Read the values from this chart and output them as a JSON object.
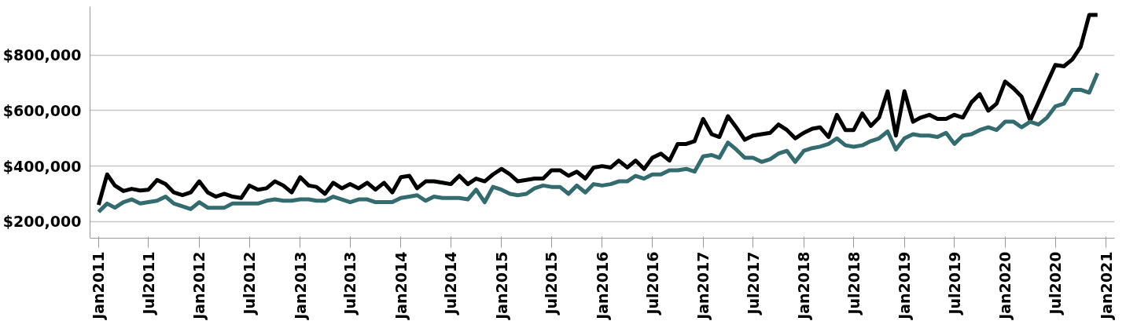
{
  "chart_data": {
    "type": "line",
    "x": [
      "2011-01",
      "2011-02",
      "2011-03",
      "2011-04",
      "2011-05",
      "2011-06",
      "2011-07",
      "2011-08",
      "2011-09",
      "2011-10",
      "2011-11",
      "2011-12",
      "2012-01",
      "2012-02",
      "2012-03",
      "2012-04",
      "2012-05",
      "2012-06",
      "2012-07",
      "2012-08",
      "2012-09",
      "2012-10",
      "2012-11",
      "2012-12",
      "2013-01",
      "2013-02",
      "2013-03",
      "2013-04",
      "2013-05",
      "2013-06",
      "2013-07",
      "2013-08",
      "2013-09",
      "2013-10",
      "2013-11",
      "2013-12",
      "2014-01",
      "2014-02",
      "2014-03",
      "2014-04",
      "2014-05",
      "2014-06",
      "2014-07",
      "2014-08",
      "2014-09",
      "2014-10",
      "2014-11",
      "2014-12",
      "2015-01",
      "2015-02",
      "2015-03",
      "2015-04",
      "2015-05",
      "2015-06",
      "2015-07",
      "2015-08",
      "2015-09",
      "2015-10",
      "2015-11",
      "2015-12",
      "2016-01",
      "2016-02",
      "2016-03",
      "2016-04",
      "2016-05",
      "2016-06",
      "2016-07",
      "2016-08",
      "2016-09",
      "2016-10",
      "2016-11",
      "2016-12",
      "2017-01",
      "2017-02",
      "2017-03",
      "2017-04",
      "2017-05",
      "2017-06",
      "2017-07",
      "2017-08",
      "2017-09",
      "2017-10",
      "2017-11",
      "2017-12",
      "2018-01",
      "2018-02",
      "2018-03",
      "2018-04",
      "2018-05",
      "2018-06",
      "2018-07",
      "2018-08",
      "2018-09",
      "2018-10",
      "2018-11",
      "2018-12",
      "2019-01",
      "2019-02",
      "2019-03",
      "2019-04",
      "2019-05",
      "2019-06",
      "2019-07",
      "2019-08",
      "2019-09",
      "2019-10",
      "2019-11",
      "2019-12",
      "2020-01",
      "2020-02",
      "2020-03",
      "2020-04",
      "2020-05",
      "2020-06",
      "2020-07",
      "2020-08",
      "2020-09",
      "2020-10",
      "2020-11",
      "2020-12"
    ],
    "series": [
      {
        "color": "#000000",
        "values": [
          260000,
          370000,
          330000,
          310000,
          318000,
          312000,
          315000,
          350000,
          335000,
          305000,
          295000,
          305000,
          345000,
          305000,
          290000,
          300000,
          290000,
          285000,
          330000,
          315000,
          320000,
          345000,
          330000,
          305000,
          360000,
          330000,
          325000,
          300000,
          340000,
          320000,
          335000,
          320000,
          340000,
          315000,
          340000,
          305000,
          360000,
          365000,
          320000,
          345000,
          345000,
          340000,
          335000,
          365000,
          335000,
          355000,
          345000,
          370000,
          390000,
          370000,
          345000,
          350000,
          355000,
          355000,
          385000,
          385000,
          365000,
          380000,
          355000,
          395000,
          400000,
          395000,
          420000,
          395000,
          420000,
          390000,
          430000,
          445000,
          420000,
          480000,
          480000,
          490000,
          570000,
          515000,
          505000,
          580000,
          540000,
          495000,
          510000,
          515000,
          520000,
          550000,
          530000,
          500000,
          520000,
          535000,
          540000,
          505000,
          585000,
          530000,
          530000,
          590000,
          545000,
          575000,
          670000,
          510000,
          670000,
          560000,
          575000,
          585000,
          570000,
          570000,
          585000,
          575000,
          630000,
          660000,
          600000,
          625000,
          705000,
          680000,
          650000,
          565000,
          630000,
          700000,
          765000,
          760000,
          785000,
          830000,
          945000,
          945000
        ]
      },
      {
        "color": "#336b6e",
        "values": [
          235000,
          265000,
          250000,
          270000,
          280000,
          265000,
          270000,
          275000,
          290000,
          265000,
          255000,
          245000,
          270000,
          250000,
          250000,
          250000,
          265000,
          265000,
          265000,
          265000,
          275000,
          280000,
          275000,
          275000,
          280000,
          280000,
          275000,
          275000,
          290000,
          280000,
          270000,
          280000,
          280000,
          270000,
          270000,
          270000,
          285000,
          290000,
          295000,
          275000,
          290000,
          285000,
          285000,
          285000,
          280000,
          315000,
          270000,
          325000,
          315000,
          300000,
          295000,
          300000,
          320000,
          330000,
          325000,
          325000,
          300000,
          330000,
          305000,
          335000,
          330000,
          335000,
          345000,
          345000,
          365000,
          355000,
          370000,
          370000,
          385000,
          385000,
          390000,
          380000,
          435000,
          440000,
          430000,
          485000,
          460000,
          430000,
          430000,
          415000,
          425000,
          445000,
          455000,
          415000,
          455000,
          465000,
          470000,
          480000,
          500000,
          475000,
          470000,
          475000,
          490000,
          500000,
          525000,
          460000,
          500000,
          515000,
          510000,
          510000,
          505000,
          520000,
          480000,
          510000,
          515000,
          530000,
          540000,
          530000,
          560000,
          560000,
          540000,
          560000,
          550000,
          575000,
          615000,
          625000,
          675000,
          675000,
          665000,
          735000
        ]
      }
    ],
    "xlim": [
      "2010-12",
      "2021-02"
    ],
    "xticks": [
      {
        "value": "2011-01",
        "label": "Jan2011"
      },
      {
        "value": "2011-07",
        "label": "Jul2011"
      },
      {
        "value": "2012-01",
        "label": "Jan2012"
      },
      {
        "value": "2012-07",
        "label": "Jul2012"
      },
      {
        "value": "2013-01",
        "label": "Jan2013"
      },
      {
        "value": "2013-07",
        "label": "Jul2013"
      },
      {
        "value": "2014-01",
        "label": "Jan2014"
      },
      {
        "value": "2014-07",
        "label": "Jul2014"
      },
      {
        "value": "2015-01",
        "label": "Jan2015"
      },
      {
        "value": "2015-07",
        "label": "Jul2015"
      },
      {
        "value": "2016-01",
        "label": "Jan2016"
      },
      {
        "value": "2016-07",
        "label": "Jul2016"
      },
      {
        "value": "2017-01",
        "label": "Jan2017"
      },
      {
        "value": "2017-07",
        "label": "Jul2017"
      },
      {
        "value": "2018-01",
        "label": "Jan2018"
      },
      {
        "value": "2018-07",
        "label": "Jul2018"
      },
      {
        "value": "2019-01",
        "label": "Jan2019"
      },
      {
        "value": "2019-07",
        "label": "Jul2019"
      },
      {
        "value": "2020-01",
        "label": "Jan2020"
      },
      {
        "value": "2020-07",
        "label": "Jul2020"
      },
      {
        "value": "2021-01",
        "label": "Jan2021"
      }
    ],
    "ylim": [
      140000,
      975000
    ],
    "yticks": [
      {
        "value": 200000,
        "label": "$200,000"
      },
      {
        "value": 400000,
        "label": "$400,000"
      },
      {
        "value": 600000,
        "label": "$600,000"
      },
      {
        "value": 800000,
        "label": "$800,000"
      }
    ],
    "grid": "y",
    "marker": "none",
    "line_style": "solid"
  }
}
